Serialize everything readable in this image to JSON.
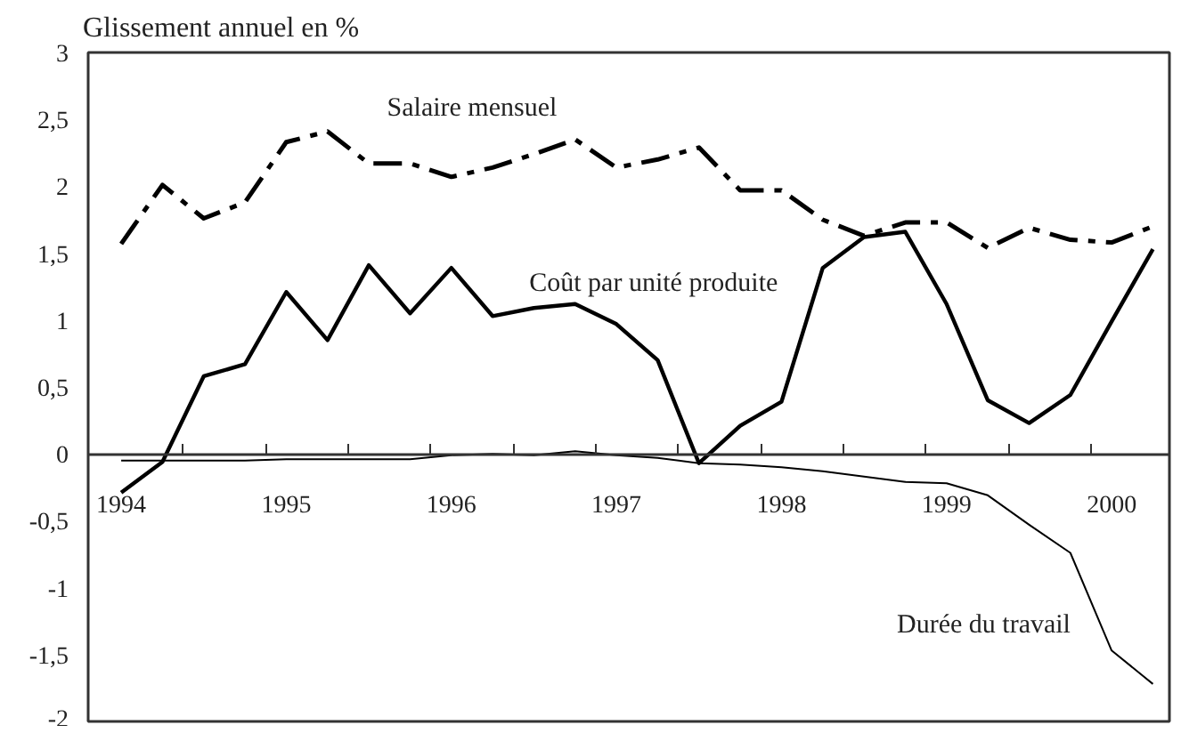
{
  "chart_data": {
    "type": "line",
    "ylabel": "Glissement annuel en %",
    "categories": [
      "1994",
      null,
      null,
      null,
      "1995",
      null,
      null,
      null,
      "1996",
      null,
      null,
      null,
      "1997",
      null,
      null,
      null,
      "1998",
      null,
      null,
      null,
      "1999",
      null,
      null,
      null,
      "2000",
      null
    ],
    "ylim": [
      -2,
      3
    ],
    "yticks": [
      {
        "value": -2,
        "label": "-2"
      },
      {
        "value": -1.5,
        "label": "-1,5"
      },
      {
        "value": -1,
        "label": "-1"
      },
      {
        "value": -0.5,
        "label": "-0,5"
      },
      {
        "value": 0,
        "label": "0"
      },
      {
        "value": 0.5,
        "label": "0,5"
      },
      {
        "value": 1,
        "label": "1"
      },
      {
        "value": 1.5,
        "label": "1,5"
      },
      {
        "value": 2,
        "label": "2"
      },
      {
        "value": 2.5,
        "label": "2,5"
      },
      {
        "value": 3,
        "label": "3"
      }
    ],
    "grid": false,
    "marker": "none",
    "series": [
      {
        "name": "Salaire mensuel",
        "color": "#000000",
        "line_style": "dashed",
        "values": [
          1.57,
          2.01,
          1.76,
          1.88,
          2.33,
          2.41,
          2.17,
          2.17,
          2.07,
          2.14,
          2.24,
          2.35,
          2.14,
          2.2,
          2.29,
          1.97,
          1.97,
          1.75,
          1.63,
          1.73,
          1.73,
          1.54,
          1.69,
          1.6,
          1.58,
          1.7
        ]
      },
      {
        "name": "Coût par unité produite",
        "color": "#000000",
        "line_style": "solid",
        "values": [
          -0.29,
          -0.06,
          0.58,
          0.67,
          1.21,
          0.85,
          1.41,
          1.05,
          1.39,
          1.03,
          1.09,
          1.12,
          0.97,
          0.7,
          -0.07,
          0.21,
          0.39,
          1.39,
          1.62,
          1.66,
          1.12,
          0.4,
          0.23,
          0.44,
          0.99,
          1.53
        ]
      },
      {
        "name": "Durée du travail",
        "color": "#000000",
        "line_style": "solid",
        "values": [
          -0.05,
          -0.05,
          -0.05,
          -0.05,
          -0.04,
          -0.04,
          -0.04,
          -0.04,
          -0.01,
          0,
          -0.01,
          0.02,
          -0.01,
          -0.03,
          -0.07,
          -0.08,
          -0.1,
          -0.13,
          -0.17,
          -0.21,
          -0.22,
          -0.31,
          -0.53,
          -0.74,
          -1.47,
          -1.72
        ]
      }
    ]
  }
}
